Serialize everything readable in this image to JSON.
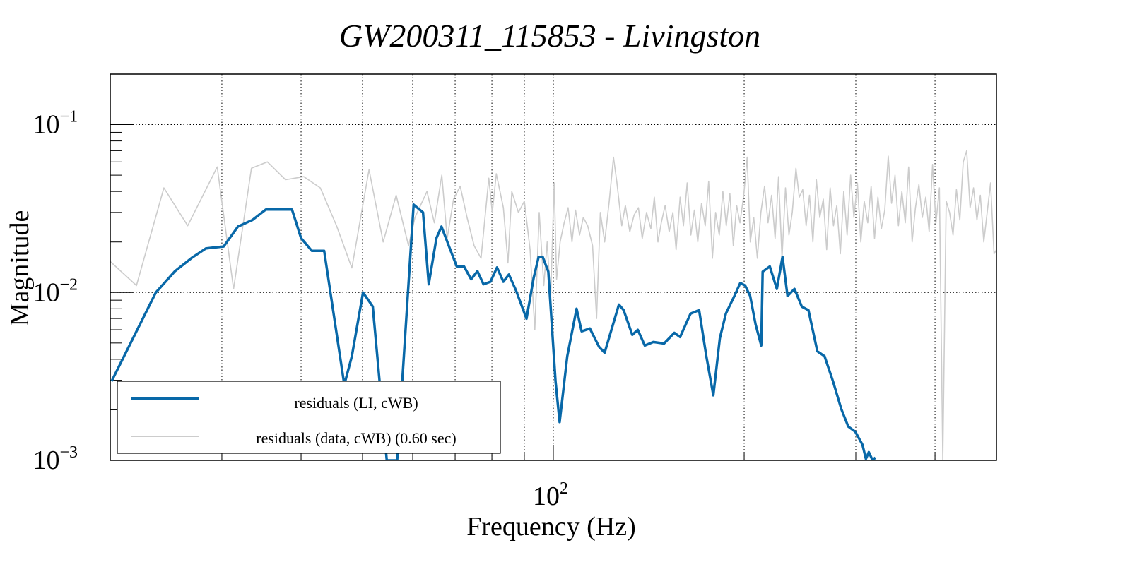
{
  "chart_data": {
    "type": "line",
    "title": "GW200311_115853 - Livingston",
    "xlabel": "Frequency (Hz)",
    "ylabel": "Magnitude",
    "xscale": "log",
    "yscale": "log",
    "xlim": [
      20,
      500
    ],
    "ylim": [
      0.001,
      0.2
    ],
    "grid": true,
    "x_tick_labels": [
      {
        "value": 100,
        "base": "10",
        "exp": "2"
      }
    ],
    "y_tick_labels": [
      {
        "value": 0.1,
        "base": "10",
        "exp": "−1"
      },
      {
        "value": 0.01,
        "base": "10",
        "exp": "−2"
      },
      {
        "value": 0.001,
        "base": "10",
        "exp": "−3"
      }
    ],
    "x_grid_values": [
      30,
      40,
      50,
      60,
      70,
      80,
      90,
      100,
      200,
      300,
      400
    ],
    "y_grid_values": [
      0.1,
      0.01
    ],
    "legend": {
      "placement": "bottom-left",
      "entries": [
        {
          "label": "residuals (LI, cWB)",
          "color": "#0868a8"
        },
        {
          "label": "residuals (data, cWB) (0.60 sec)",
          "color": "#cccccc"
        }
      ]
    },
    "series": [
      {
        "name": "residuals (LI, cWB)",
        "color": "#0868a8",
        "points": [
          [
            20.1,
            0.00296
          ],
          [
            23.6,
            0.01
          ],
          [
            25.3,
            0.0134
          ],
          [
            26.9,
            0.0161
          ],
          [
            28.3,
            0.0183
          ],
          [
            29.0,
            0.0185
          ],
          [
            30.2,
            0.0188
          ],
          [
            31.8,
            0.0247
          ],
          [
            33.5,
            0.027
          ],
          [
            35.2,
            0.0312
          ],
          [
            38.7,
            0.0312
          ],
          [
            40.0,
            0.0211
          ],
          [
            41.6,
            0.0177
          ],
          [
            43.5,
            0.0177
          ],
          [
            46.8,
            0.00282
          ],
          [
            48.1,
            0.00417
          ],
          [
            50.1,
            0.01
          ],
          [
            51.9,
            0.00824
          ],
          [
            54.6,
            0.001
          ],
          [
            56.7,
            0.001
          ],
          [
            60.2,
            0.0334
          ],
          [
            62.3,
            0.03
          ],
          [
            63.6,
            0.0112
          ],
          [
            65.4,
            0.0211
          ],
          [
            66.6,
            0.0247
          ],
          [
            70.4,
            0.0143
          ],
          [
            72.3,
            0.0143
          ],
          [
            74.2,
            0.012
          ],
          [
            75.9,
            0.0134
          ],
          [
            77.6,
            0.0112
          ],
          [
            79.6,
            0.0116
          ],
          [
            81.5,
            0.0141
          ],
          [
            83.4,
            0.0116
          ],
          [
            85.1,
            0.0128
          ],
          [
            87.3,
            0.0103
          ],
          [
            90.7,
            0.00698
          ],
          [
            93.1,
            0.0122
          ],
          [
            94.8,
            0.0163
          ],
          [
            96.2,
            0.0163
          ],
          [
            98.2,
            0.0133
          ],
          [
            100.8,
            0.00296
          ],
          [
            102.3,
            0.00169
          ],
          [
            105.2,
            0.00417
          ],
          [
            108.8,
            0.008
          ],
          [
            110.8,
            0.00587
          ],
          [
            114.2,
            0.0061
          ],
          [
            118.1,
            0.00474
          ],
          [
            120.5,
            0.00438
          ],
          [
            126.9,
            0.00847
          ],
          [
            129.1,
            0.00785
          ],
          [
            133.2,
            0.00559
          ],
          [
            135.9,
            0.00599
          ],
          [
            139.4,
            0.00483
          ],
          [
            143.8,
            0.00507
          ],
          [
            149.5,
            0.00497
          ],
          [
            155.2,
            0.00575
          ],
          [
            158.5,
            0.00543
          ],
          [
            164.6,
            0.00748
          ],
          [
            169.8,
            0.00785
          ],
          [
            174.3,
            0.00417
          ],
          [
            178.8,
            0.00244
          ],
          [
            183.1,
            0.00533
          ],
          [
            187.1,
            0.00748
          ],
          [
            193.0,
            0.00953
          ],
          [
            197.2,
            0.0114
          ],
          [
            200.7,
            0.011
          ],
          [
            204.4,
            0.00953
          ],
          [
            208.5,
            0.00646
          ],
          [
            212.8,
            0.00483
          ],
          [
            213.9,
            0.0133
          ],
          [
            219.5,
            0.0143
          ],
          [
            225.2,
            0.0105
          ],
          [
            229.9,
            0.0163
          ],
          [
            234.1,
            0.00953
          ],
          [
            240.1,
            0.0105
          ],
          [
            246.6,
            0.00824
          ],
          [
            252.6,
            0.00785
          ],
          [
            260.9,
            0.00446
          ],
          [
            267.8,
            0.00417
          ],
          [
            276.1,
            0.00296
          ],
          [
            284.6,
            0.00202
          ],
          [
            291.9,
            0.00159
          ],
          [
            299.5,
            0.00148
          ],
          [
            307.3,
            0.00124
          ],
          [
            311.2,
            0.00102
          ],
          [
            314.5,
            0.00112
          ],
          [
            318.9,
            0.001
          ],
          [
            322.1,
            0.00104
          ]
        ]
      },
      {
        "name": "residuals (data, cWB) (0.60 sec)",
        "color": "#cccccc",
        "points": [
          [
            20.0,
            0.0153
          ],
          [
            22.0,
            0.011
          ],
          [
            24.3,
            0.042
          ],
          [
            26.5,
            0.025
          ],
          [
            29.5,
            0.056
          ],
          [
            31.3,
            0.0105
          ],
          [
            33.4,
            0.055
          ],
          [
            35.4,
            0.06
          ],
          [
            37.8,
            0.047
          ],
          [
            40.4,
            0.049
          ],
          [
            42.9,
            0.042
          ],
          [
            45.5,
            0.025
          ],
          [
            48.1,
            0.014
          ],
          [
            51.2,
            0.054
          ],
          [
            53.9,
            0.02
          ],
          [
            56.5,
            0.038
          ],
          [
            59.1,
            0.019
          ],
          [
            60.5,
            0.028
          ],
          [
            63.2,
            0.04
          ],
          [
            64.9,
            0.026
          ],
          [
            66.7,
            0.05
          ],
          [
            68.0,
            0.021
          ],
          [
            69.6,
            0.036
          ],
          [
            71.3,
            0.043
          ],
          [
            73.1,
            0.028
          ],
          [
            75.0,
            0.019
          ],
          [
            76.9,
            0.016
          ],
          [
            79.1,
            0.048
          ],
          [
            80.1,
            0.03
          ],
          [
            81.3,
            0.051
          ],
          [
            83.4,
            0.032
          ],
          [
            84.8,
            0.015
          ],
          [
            86.0,
            0.04
          ],
          [
            88.1,
            0.03
          ],
          [
            90.0,
            0.035
          ],
          [
            91.9,
            0.018
          ],
          [
            93.5,
            0.006
          ],
          [
            95.0,
            0.03
          ],
          [
            96.6,
            0.011
          ],
          [
            97.8,
            0.02
          ],
          [
            99.0,
            0.009
          ],
          [
            100.3,
            0.045
          ],
          [
            101.2,
            0.012
          ],
          [
            102.5,
            0.02
          ],
          [
            104.0,
            0.026
          ],
          [
            105.5,
            0.032
          ],
          [
            107.0,
            0.02
          ],
          [
            108.4,
            0.031
          ],
          [
            110.0,
            0.022
          ],
          [
            111.5,
            0.028
          ],
          [
            113.3,
            0.025
          ],
          [
            115.3,
            0.019
          ],
          [
            117.0,
            0.007
          ],
          [
            118.6,
            0.03
          ],
          [
            120.5,
            0.02
          ],
          [
            122.5,
            0.035
          ],
          [
            124.4,
            0.064
          ],
          [
            126.0,
            0.045
          ],
          [
            128.2,
            0.025
          ],
          [
            129.9,
            0.033
          ],
          [
            132.0,
            0.023
          ],
          [
            134.1,
            0.029
          ],
          [
            136.2,
            0.032
          ],
          [
            138.1,
            0.021
          ],
          [
            140.3,
            0.03
          ],
          [
            142.5,
            0.024
          ],
          [
            144.3,
            0.037
          ],
          [
            146.2,
            0.02
          ],
          [
            148.0,
            0.026
          ],
          [
            150.1,
            0.033
          ],
          [
            152.3,
            0.023
          ],
          [
            154.4,
            0.03
          ],
          [
            156.2,
            0.018
          ],
          [
            158.5,
            0.037
          ],
          [
            160.4,
            0.025
          ],
          [
            162.6,
            0.045
          ],
          [
            164.8,
            0.022
          ],
          [
            166.9,
            0.031
          ],
          [
            169.0,
            0.02
          ],
          [
            171.3,
            0.034
          ],
          [
            173.6,
            0.025
          ],
          [
            175.8,
            0.046
          ],
          [
            178.2,
            0.016
          ],
          [
            180.3,
            0.03
          ],
          [
            182.7,
            0.022
          ],
          [
            185.1,
            0.04
          ],
          [
            187.4,
            0.025
          ],
          [
            189.9,
            0.039
          ],
          [
            192.3,
            0.019
          ],
          [
            194.6,
            0.033
          ],
          [
            197.0,
            0.026
          ],
          [
            199.7,
            0.038
          ],
          [
            202.2,
            0.064
          ],
          [
            204.5,
            0.02
          ],
          [
            207.1,
            0.028
          ],
          [
            209.8,
            0.016
          ],
          [
            212.5,
            0.03
          ],
          [
            215.4,
            0.043
          ],
          [
            218.1,
            0.026
          ],
          [
            221.0,
            0.038
          ],
          [
            223.8,
            0.021
          ],
          [
            226.6,
            0.049
          ],
          [
            229.5,
            0.016
          ],
          [
            232.4,
            0.042
          ],
          [
            235.3,
            0.022
          ],
          [
            238.2,
            0.03
          ],
          [
            241.4,
            0.055
          ],
          [
            244.3,
            0.037
          ],
          [
            247.4,
            0.041
          ],
          [
            250.5,
            0.025
          ],
          [
            253.6,
            0.038
          ],
          [
            256.7,
            0.02
          ],
          [
            260.0,
            0.047
          ],
          [
            263.2,
            0.028
          ],
          [
            266.6,
            0.036
          ],
          [
            269.9,
            0.018
          ],
          [
            273.3,
            0.042
          ],
          [
            276.6,
            0.025
          ],
          [
            280.0,
            0.033
          ],
          [
            283.6,
            0.017
          ],
          [
            287.1,
            0.04
          ],
          [
            290.7,
            0.022
          ],
          [
            294.4,
            0.05
          ],
          [
            297.9,
            0.028
          ],
          [
            301.8,
            0.045
          ],
          [
            305.5,
            0.02
          ],
          [
            309.3,
            0.035
          ],
          [
            313.3,
            0.026
          ],
          [
            317.2,
            0.043
          ],
          [
            321.1,
            0.021
          ],
          [
            325.1,
            0.037
          ],
          [
            329.2,
            0.024
          ],
          [
            333.3,
            0.031
          ],
          [
            337.5,
            0.065
          ],
          [
            341.6,
            0.034
          ],
          [
            345.9,
            0.05
          ],
          [
            350.2,
            0.025
          ],
          [
            354.7,
            0.04
          ],
          [
            359.1,
            0.026
          ],
          [
            363.5,
            0.056
          ],
          [
            368.1,
            0.02
          ],
          [
            372.6,
            0.032
          ],
          [
            377.3,
            0.044
          ],
          [
            382.0,
            0.028
          ],
          [
            386.8,
            0.037
          ],
          [
            391.6,
            0.023
          ],
          [
            396.5,
            0.058
          ],
          [
            401.4,
            0.026
          ],
          [
            406.4,
            0.042
          ],
          [
            411.5,
            0.001
          ],
          [
            416.6,
            0.035
          ],
          [
            421.8,
            0.03
          ],
          [
            427.1,
            0.022
          ],
          [
            432.4,
            0.041
          ],
          [
            437.8,
            0.027
          ],
          [
            443.2,
            0.06
          ],
          [
            448.8,
            0.07
          ],
          [
            454.4,
            0.032
          ],
          [
            460.1,
            0.042
          ],
          [
            465.8,
            0.027
          ],
          [
            471.6,
            0.038
          ],
          [
            477.5,
            0.02
          ],
          [
            483.5,
            0.03
          ],
          [
            489.5,
            0.045
          ],
          [
            495.6,
            0.017
          ],
          [
            500.0,
            0.018
          ]
        ]
      }
    ]
  }
}
